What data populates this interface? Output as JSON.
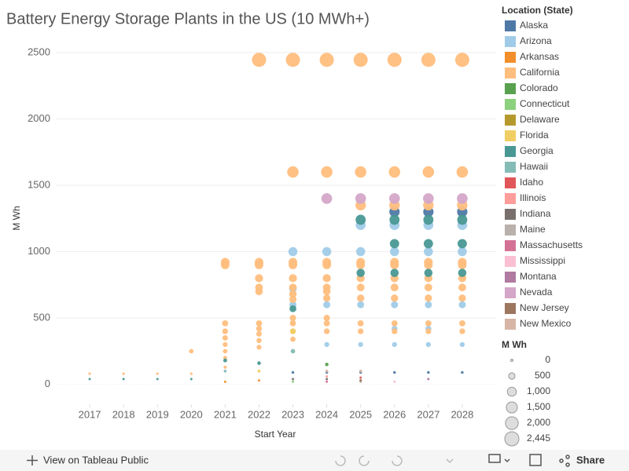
{
  "chart_data": {
    "type": "scatter",
    "title": "Battery Energy Storage Plants in the US (10 MWh+)",
    "x_label": "Start Year",
    "y_label": "M Wh",
    "legend_title": "Location (State)",
    "size_legend_title": "M Wh",
    "xlim": [
      2016,
      2029
    ],
    "xticks": [
      2017,
      2018,
      2019,
      2020,
      2021,
      2022,
      2023,
      2024,
      2025,
      2026,
      2027,
      2028
    ],
    "ylim": [
      -150,
      2600
    ],
    "yticks": [
      0,
      500,
      1000,
      1500,
      2000,
      2500
    ],
    "grid": true,
    "size_legend": [
      0,
      500,
      {
        "value": 1000,
        "label": "1,000"
      },
      {
        "value": 1500,
        "label": "1,500"
      },
      {
        "value": 2000,
        "label": "2,000"
      },
      {
        "value": 2445,
        "label": "2,445"
      }
    ],
    "series": [
      {
        "name": "Alaska",
        "color": "#4e79a7",
        "x": [
          2023,
          2024,
          2025,
          2026,
          2027,
          2028,
          2026,
          2027,
          2028
        ],
        "values": [
          90,
          90,
          90,
          1300,
          1300,
          1300,
          90,
          90,
          90
        ]
      },
      {
        "name": "Arizona",
        "color": "#a0cbe8",
        "x": [
          2023,
          2023,
          2023,
          2024,
          2024,
          2024,
          2025,
          2025,
          2025,
          2025,
          2026,
          2026,
          2026,
          2026,
          2026,
          2027,
          2027,
          2027,
          2027,
          2027,
          2028,
          2028,
          2028,
          2028
        ],
        "values": [
          1000,
          720,
          600,
          1000,
          600,
          300,
          1200,
          1000,
          600,
          300,
          1200,
          1000,
          600,
          420,
          300,
          1200,
          1000,
          600,
          420,
          300,
          1200,
          1000,
          600,
          300
        ]
      },
      {
        "name": "Arkansas",
        "color": "#f28e2b",
        "x": [
          2021,
          2022
        ],
        "values": [
          20,
          30
        ]
      },
      {
        "name": "California",
        "color": "#ffbe7d",
        "x": [
          2017,
          2018,
          2019,
          2020,
          2020,
          2021,
          2021,
          2021,
          2021,
          2021,
          2021,
          2021,
          2021,
          2021,
          2022,
          2022,
          2022,
          2022,
          2022,
          2022,
          2022,
          2022,
          2022,
          2022,
          2022,
          2023,
          2023,
          2023,
          2023,
          2023,
          2023,
          2023,
          2023,
          2023,
          2023,
          2023,
          2023,
          2024,
          2024,
          2024,
          2024,
          2024,
          2024,
          2024,
          2024,
          2024,
          2024,
          2024,
          2025,
          2025,
          2025,
          2025,
          2025,
          2025,
          2025,
          2025,
          2025,
          2025,
          2026,
          2026,
          2026,
          2026,
          2026,
          2026,
          2026,
          2026,
          2026,
          2026,
          2027,
          2027,
          2027,
          2027,
          2027,
          2027,
          2027,
          2027,
          2027,
          2027,
          2028,
          2028,
          2028,
          2028,
          2028,
          2028,
          2028,
          2028,
          2028,
          2028
        ],
        "values": [
          80,
          80,
          80,
          250,
          80,
          920,
          900,
          460,
          400,
          350,
          300,
          250,
          200,
          130,
          2445,
          920,
          900,
          800,
          730,
          700,
          460,
          420,
          380,
          330,
          280,
          2445,
          1600,
          920,
          900,
          800,
          730,
          680,
          640,
          500,
          460,
          400,
          340,
          2445,
          1600,
          920,
          900,
          800,
          730,
          700,
          650,
          500,
          460,
          400,
          2445,
          1600,
          1350,
          920,
          900,
          800,
          730,
          650,
          460,
          400,
          2445,
          1600,
          1350,
          920,
          900,
          800,
          730,
          650,
          460,
          400,
          2445,
          1600,
          1350,
          920,
          900,
          800,
          730,
          650,
          460,
          400,
          2445,
          1600,
          1350,
          920,
          900,
          800,
          730,
          650,
          460,
          400
        ]
      },
      {
        "name": "Colorado",
        "color": "#59a14f",
        "x": [
          2024
        ],
        "values": [
          150
        ]
      },
      {
        "name": "Connecticut",
        "color": "#8cd17d",
        "x": [
          2023
        ],
        "values": [
          20
        ]
      },
      {
        "name": "Delaware",
        "color": "#b6992d",
        "x": [
          2025
        ],
        "values": [
          30
        ]
      },
      {
        "name": "Florida",
        "color": "#f1ce63",
        "x": [
          2022,
          2023
        ],
        "values": [
          100,
          400
        ]
      },
      {
        "name": "Georgia",
        "color": "#499894",
        "x": [
          2017,
          2018,
          2019,
          2020,
          2021,
          2022,
          2023,
          2025,
          2025,
          2026,
          2026,
          2026,
          2027,
          2027,
          2027,
          2028,
          2028,
          2028
        ],
        "values": [
          40,
          40,
          40,
          40,
          180,
          160,
          570,
          1240,
          840,
          1240,
          1060,
          840,
          1240,
          1060,
          840,
          1240,
          1060,
          840
        ]
      },
      {
        "name": "Hawaii",
        "color": "#86bcb6",
        "x": [
          2021,
          2023
        ],
        "values": [
          100,
          250
        ]
      },
      {
        "name": "Idaho",
        "color": "#e15759",
        "x": [
          2025
        ],
        "values": [
          50
        ]
      },
      {
        "name": "Illinois",
        "color": "#ff9d9a",
        "x": [
          2024
        ],
        "values": [
          60
        ]
      },
      {
        "name": "Indiana",
        "color": "#79706e",
        "x": [
          2023,
          2024
        ],
        "values": [
          40,
          40
        ]
      },
      {
        "name": "Maine",
        "color": "#bab0ac",
        "x": [
          2025
        ],
        "values": [
          20
        ]
      },
      {
        "name": "Massachusetts",
        "color": "#d37295",
        "x": [
          2024
        ],
        "values": [
          20
        ]
      },
      {
        "name": "Mississippi",
        "color": "#fabfd2",
        "x": [
          2026
        ],
        "values": [
          20
        ]
      },
      {
        "name": "Montana",
        "color": "#b07aa1",
        "x": [
          2027
        ],
        "values": [
          40
        ]
      },
      {
        "name": "Nevada",
        "color": "#d4a6c8",
        "x": [
          2024,
          2025,
          2026,
          2027,
          2028
        ],
        "values": [
          1400,
          1400,
          1400,
          1400,
          1400
        ]
      },
      {
        "name": "New Jersey",
        "color": "#9d7660",
        "x": [
          2025
        ],
        "values": [
          30
        ]
      },
      {
        "name": "New Mexico",
        "color": "#d7b5a6",
        "x": [
          2024,
          2025
        ],
        "values": [
          100,
          100
        ]
      }
    ]
  },
  "toolbar": {
    "view_link": "View on Tableau Public",
    "share": "Share"
  }
}
